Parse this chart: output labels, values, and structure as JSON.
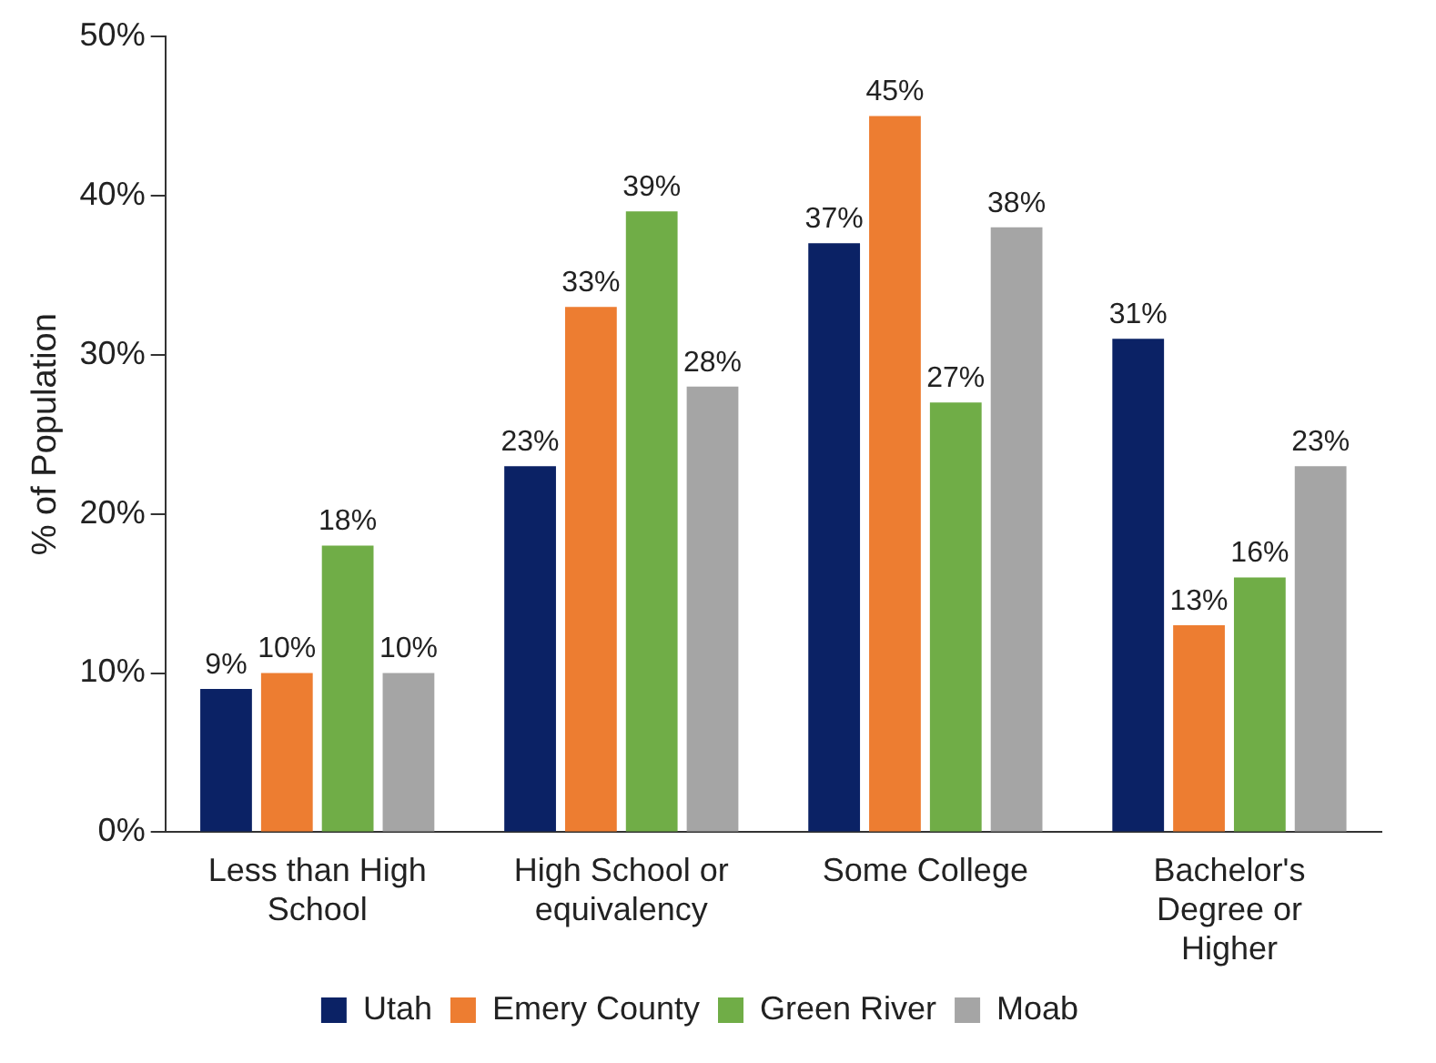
{
  "chart_data": {
    "type": "bar",
    "ylabel": "% of Population",
    "categories": [
      "Less than High School",
      "High School or equivalency",
      "Some College",
      "Bachelor's Degree or Higher"
    ],
    "series": [
      {
        "name": "Utah",
        "color": "#0b2265",
        "values": [
          9,
          23,
          37,
          31
        ],
        "value_labels": [
          "9%",
          "23%",
          "37%",
          "31%"
        ]
      },
      {
        "name": "Emery County",
        "color": "#ed7d31",
        "values": [
          10,
          33,
          45,
          13
        ],
        "value_labels": [
          "10%",
          "33%",
          "45%",
          "13%"
        ]
      },
      {
        "name": "Green River",
        "color": "#70ad47",
        "values": [
          18,
          39,
          27,
          16
        ],
        "value_labels": [
          "18%",
          "39%",
          "27%",
          "16%"
        ]
      },
      {
        "name": "Moab",
        "color": "#a5a5a5",
        "values": [
          10,
          28,
          38,
          23
        ],
        "value_labels": [
          "10%",
          "28%",
          "38%",
          "23%"
        ]
      }
    ],
    "ylim": [
      0,
      50
    ],
    "yticks": [
      {
        "value": 0,
        "label": "0%"
      },
      {
        "value": 10,
        "label": "10%"
      },
      {
        "value": 20,
        "label": "20%"
      },
      {
        "value": 30,
        "label": "30%"
      },
      {
        "value": 40,
        "label": "40%"
      },
      {
        "value": 50,
        "label": "50%"
      }
    ],
    "grid": false,
    "legend": "bottom"
  }
}
